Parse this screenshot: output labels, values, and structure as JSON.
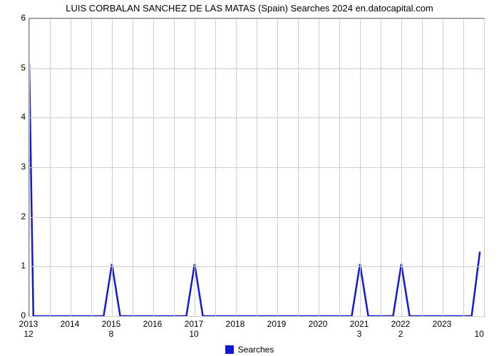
{
  "chart": {
    "type": "line",
    "title": "LUIS CORBALAN SANCHEZ DE LAS MATAS (Spain) Searches 2024 en.datocapital.com",
    "title_fontsize": 13,
    "background_color": "#ffffff",
    "grid_color": "#cccccc",
    "axis_color": "#808080",
    "line_color": "#1119d3",
    "line_width": 2.5,
    "xlim": [
      2013,
      2024
    ],
    "ylim": [
      0,
      6
    ],
    "ytick_step": 1,
    "y_ticks": [
      0,
      1,
      2,
      3,
      4,
      5,
      6
    ],
    "x_ticks": [
      2013,
      2014,
      2015,
      2016,
      2017,
      2018,
      2019,
      2020,
      2021,
      2022,
      2023
    ],
    "x_minor_step": 0.5,
    "legend": {
      "label": "Searches",
      "swatch_color": "#1119d3",
      "position": "bottom-center"
    },
    "bar_counts": [
      {
        "x": 2013,
        "label": "12"
      },
      {
        "x": 2015,
        "label": "8"
      },
      {
        "x": 2017,
        "label": "10"
      },
      {
        "x": 2021,
        "label": "3"
      },
      {
        "x": 2022,
        "label": "2"
      },
      {
        "x": 2023.9,
        "label": "10"
      }
    ],
    "series": {
      "name": "Searches",
      "points": [
        {
          "x": 2013.0,
          "y": 5.1
        },
        {
          "x": 2013.1,
          "y": 0.0
        },
        {
          "x": 2014.8,
          "y": 0.0
        },
        {
          "x": 2015.0,
          "y": 1.05
        },
        {
          "x": 2015.2,
          "y": 0.0
        },
        {
          "x": 2016.8,
          "y": 0.0
        },
        {
          "x": 2017.0,
          "y": 1.05
        },
        {
          "x": 2017.2,
          "y": 0.0
        },
        {
          "x": 2020.8,
          "y": 0.0
        },
        {
          "x": 2021.0,
          "y": 1.05
        },
        {
          "x": 2021.2,
          "y": 0.0
        },
        {
          "x": 2021.8,
          "y": 0.0
        },
        {
          "x": 2022.0,
          "y": 1.05
        },
        {
          "x": 2022.2,
          "y": 0.0
        },
        {
          "x": 2023.7,
          "y": 0.0
        },
        {
          "x": 2023.9,
          "y": 1.3
        }
      ]
    }
  }
}
